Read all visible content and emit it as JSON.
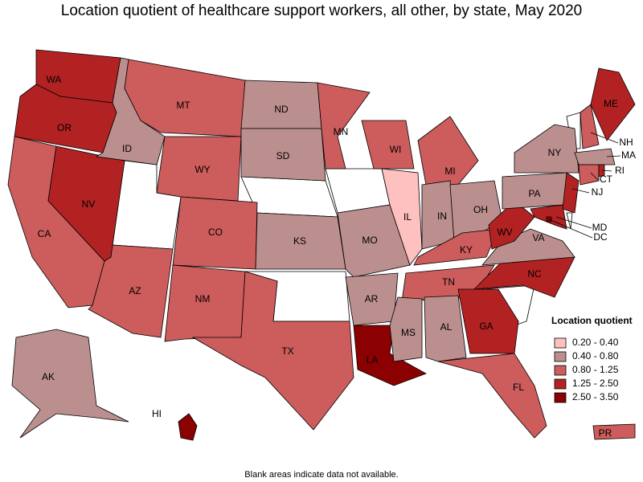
{
  "title": "Location quotient of healthcare support workers, all other, by state, May 2020",
  "legend": {
    "title": "Location quotient",
    "classes": [
      {
        "label": "0.20 - 0.40",
        "color": "#ffc0c0"
      },
      {
        "label": "0.40 - 0.80",
        "color": "#bc8f8f"
      },
      {
        "label": "0.80 - 1.25",
        "color": "#cd5c5c"
      },
      {
        "label": "1.25 - 2.50",
        "color": "#b22222"
      },
      {
        "label": "2.50 - 3.50",
        "color": "#8b0000"
      }
    ]
  },
  "states": [
    {
      "label": "WA",
      "class": 3
    },
    {
      "label": "OR",
      "class": 3
    },
    {
      "label": "CA",
      "class": 2
    },
    {
      "label": "NV",
      "class": 3
    },
    {
      "label": "ID",
      "class": 1
    },
    {
      "label": "MT",
      "class": 2
    },
    {
      "label": "WY",
      "class": 2
    },
    {
      "label": "AZ",
      "class": 2
    },
    {
      "label": "CO",
      "class": 2
    },
    {
      "label": "NM",
      "class": 2
    },
    {
      "label": "ND",
      "class": 1
    },
    {
      "label": "SD",
      "class": 1
    },
    {
      "label": "KS",
      "class": 1
    },
    {
      "label": "TX",
      "class": 2
    },
    {
      "label": "MN",
      "class": 2
    },
    {
      "label": "MO",
      "class": 1
    },
    {
      "label": "AR",
      "class": 1
    },
    {
      "label": "LA",
      "class": 4
    },
    {
      "label": "WI",
      "class": 2
    },
    {
      "label": "IL",
      "class": 0
    },
    {
      "label": "MI",
      "class": 2
    },
    {
      "label": "IN",
      "class": 1
    },
    {
      "label": "OH",
      "class": 1
    },
    {
      "label": "KY",
      "class": 2
    },
    {
      "label": "TN",
      "class": 2
    },
    {
      "label": "MS",
      "class": 1
    },
    {
      "label": "AL",
      "class": 1
    },
    {
      "label": "GA",
      "class": 3
    },
    {
      "label": "FL",
      "class": 2
    },
    {
      "label": "NC",
      "class": 3
    },
    {
      "label": "VA",
      "class": 1
    },
    {
      "label": "WV",
      "class": 3
    },
    {
      "label": "MD",
      "class": 3
    },
    {
      "label": "PA",
      "class": 1
    },
    {
      "label": "NJ",
      "class": 3
    },
    {
      "label": "NY",
      "class": 1
    },
    {
      "label": "NH",
      "class": 2
    },
    {
      "label": "ME",
      "class": 3
    },
    {
      "label": "MA",
      "class": 1
    },
    {
      "label": "CT",
      "class": 2
    },
    {
      "label": "RI",
      "class": 3
    },
    {
      "label": "AK",
      "class": 1
    },
    {
      "label": "HI",
      "class": 4
    },
    {
      "label": "PR",
      "class": 2
    },
    {
      "label": "DC",
      "class": 4
    }
  ],
  "note": "Blank areas indicate data not available."
}
